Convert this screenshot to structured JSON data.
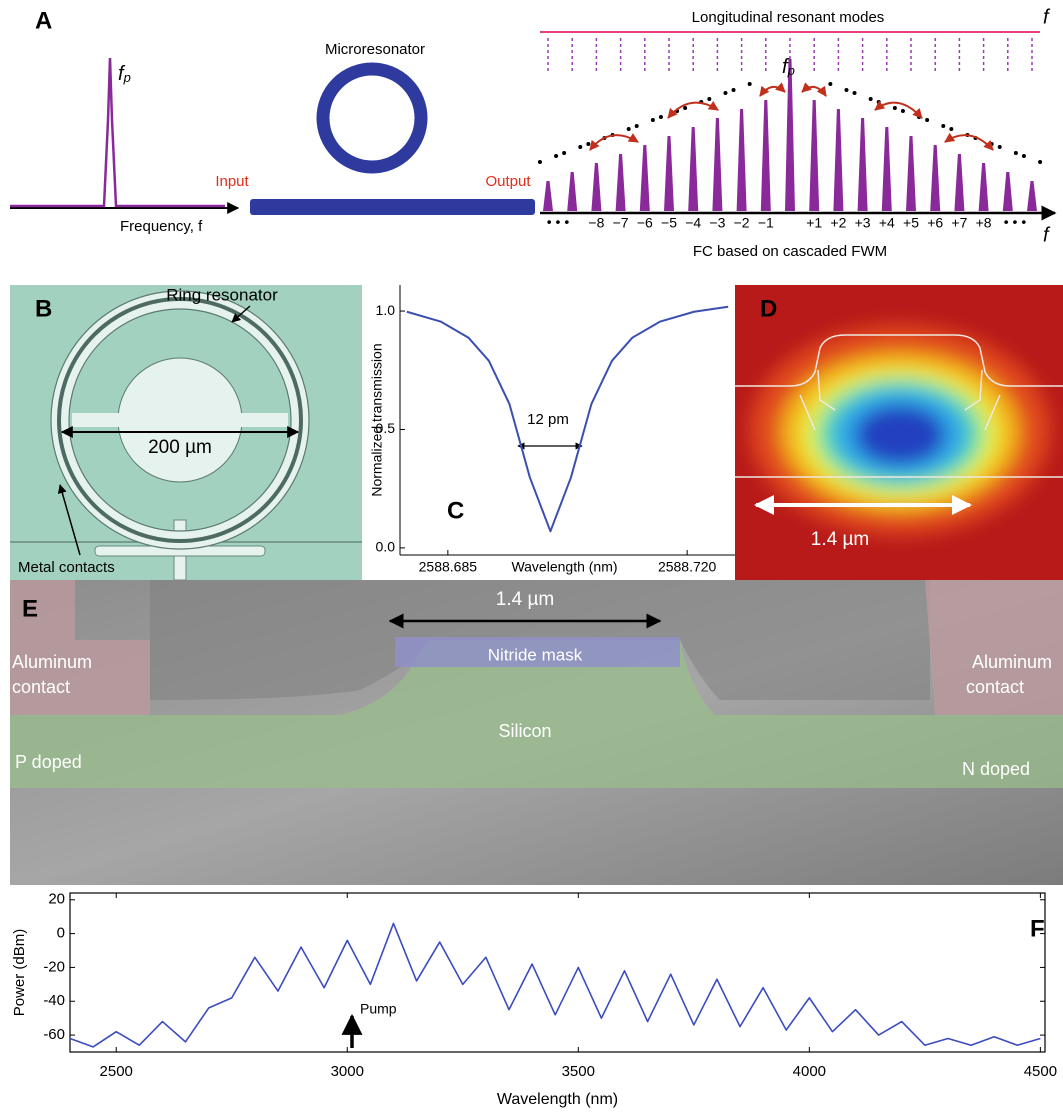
{
  "panel_a": {
    "label": "A",
    "modes_title": "Longitudinal resonant modes",
    "f_symbol": "f",
    "pump_f": "f",
    "pump_sub": "p",
    "input_axis": "Frequency, f",
    "device": "Microresonator",
    "input": "Input",
    "output": "Output",
    "mode_numbers": [
      "−8",
      "−7",
      "−6",
      "−5",
      "−4",
      "−3",
      "−2",
      "−1",
      "+1",
      "+2",
      "+3",
      "+4",
      "+5",
      "+6",
      "+7",
      "+8"
    ],
    "ellipsis": "• • •",
    "caption": "FC based on cascaded FWM"
  },
  "panel_b": {
    "label": "B",
    "ring": "Ring resonator",
    "diameter": "200 µm",
    "contacts": "Metal contacts"
  },
  "panel_d": {
    "label": "D",
    "width": "1.4 µm"
  },
  "panel_e": {
    "label": "E",
    "width": "1.4 µm",
    "mask": "Nitride mask",
    "left_contact": [
      "Aluminum",
      "contact"
    ],
    "right_contact": [
      "Aluminum",
      "contact"
    ],
    "core": "Silicon",
    "left_doping": "P doped",
    "right_doping": "N doped"
  },
  "chart_data": [
    {
      "type": "line",
      "label": "C",
      "x": [
        2588.679,
        2588.684,
        2588.688,
        2588.691,
        2588.694,
        2588.697,
        2588.7,
        2588.703,
        2588.706,
        2588.709,
        2588.712,
        2588.716,
        2588.721,
        2588.726
      ],
      "values": [
        0.997,
        0.955,
        0.888,
        0.79,
        0.608,
        0.297,
        0.07,
        0.297,
        0.608,
        0.79,
        0.888,
        0.955,
        0.997,
        1.018
      ],
      "color": "#3b4fb0",
      "xlim": [
        2588.678,
        2588.727
      ],
      "ylim": [
        -0.03,
        1.11
      ],
      "xticks": [
        2588.685,
        {
          "value": 2588.72,
          "label": "2588.720"
        }
      ],
      "yticks": [
        {
          "value": 0,
          "label": "0.0"
        },
        0.5,
        {
          "value": 1,
          "label": "1.0"
        }
      ],
      "xlabel": "Wavelength (nm)",
      "ylabel": "Normalized transmission",
      "annotation": "12 pm"
    },
    {
      "type": "line",
      "label": "F",
      "x": [
        2400,
        2450,
        2500,
        2550,
        2600,
        2650,
        2700,
        2750,
        2800,
        2850,
        2900,
        2950,
        3000,
        3050,
        3100,
        3150,
        3200,
        3250,
        3300,
        3350,
        3400,
        3450,
        3500,
        3550,
        3600,
        3650,
        3700,
        3750,
        3800,
        3850,
        3900,
        3950,
        4000,
        4050,
        4100,
        4150,
        4200,
        4250,
        4300,
        4350,
        4400,
        4450,
        4500
      ],
      "values": [
        -62,
        -67,
        -58,
        -66,
        -52,
        -64,
        -44,
        -38,
        -14,
        -34,
        -8,
        -32,
        -4,
        -30,
        6,
        -28,
        -5,
        -30,
        -14,
        -45,
        -18,
        -48,
        -20,
        -50,
        -22,
        -52,
        -24,
        -54,
        -27,
        -55,
        -32,
        -57,
        -38,
        -58,
        -45,
        -60,
        -52,
        -66,
        -62,
        -66,
        -61,
        -66,
        -62
      ],
      "color": "#3b4cc0",
      "xlim": [
        2400,
        4510
      ],
      "ylim": [
        -70,
        24
      ],
      "xticks": [
        2500,
        3000,
        3500,
        4000,
        4500
      ],
      "yticks": [
        20,
        0,
        -20,
        -40,
        -60
      ],
      "xlabel": "Wavelength (nm)",
      "ylabel": "Power (dBm)",
      "annotation": "Pump"
    }
  ]
}
